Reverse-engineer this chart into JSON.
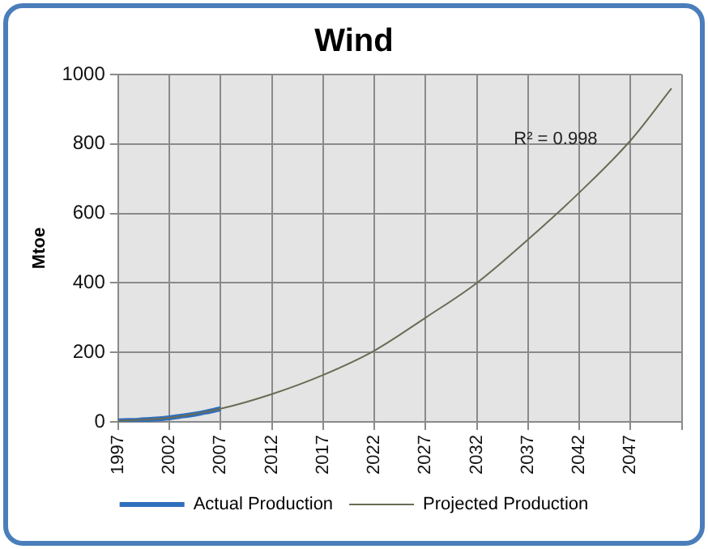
{
  "chart_data": {
    "type": "line",
    "title": "Wind",
    "ylabel": "Mtoe",
    "series": [
      {
        "name": "Actual Production",
        "color": "#2e6fbd",
        "x": [
          1997,
          1998,
          1999,
          2000,
          2001,
          2002,
          2003,
          2004,
          2005,
          2006,
          2007
        ],
        "values": [
          3,
          4,
          5,
          7,
          9,
          12,
          16,
          20,
          25,
          31,
          38
        ]
      },
      {
        "name": "Projected Production",
        "color": "#6b6b55",
        "x": [
          1997,
          2002,
          2007,
          2012,
          2017,
          2022,
          2027,
          2032,
          2037,
          2042,
          2047,
          2051
        ],
        "values": [
          3,
          12,
          38,
          80,
          135,
          205,
          300,
          400,
          525,
          660,
          810,
          960
        ]
      }
    ],
    "xlim": [
      1997,
      2052
    ],
    "xticks": [
      1997,
      2002,
      2007,
      2012,
      2017,
      2022,
      2027,
      2032,
      2037,
      2042,
      2047,
      {
        "value": 2052,
        "label": null
      }
    ],
    "ylim": [
      0,
      1000
    ],
    "yticks": [
      0,
      200,
      400,
      600,
      800,
      1000
    ],
    "annotations": [
      "R² = 0.998"
    ],
    "grid": true,
    "legend": "bottom"
  }
}
